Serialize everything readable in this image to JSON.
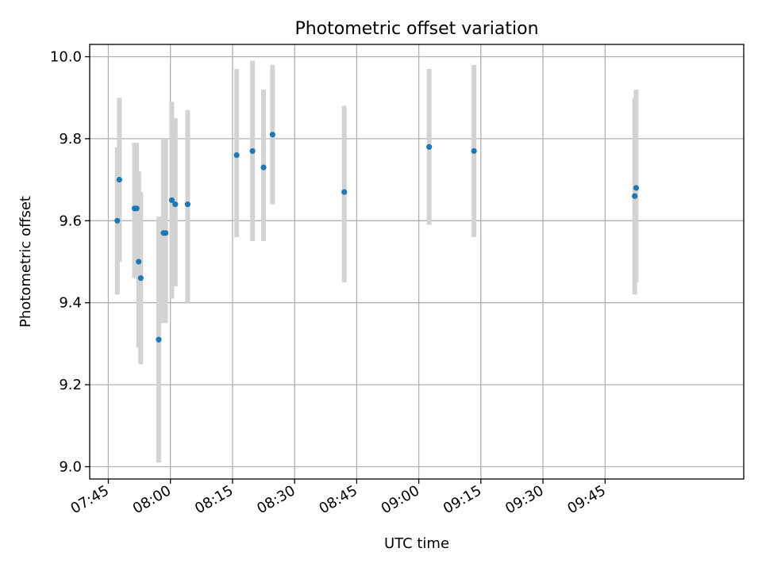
{
  "chart_data": {
    "type": "scatter",
    "title": "Photometric offset variation",
    "xlabel": "UTC time",
    "ylabel": "Photometric offset",
    "x_unit": "time_of_day",
    "xlim": [
      "07:40:30",
      "10:18:30"
    ],
    "ylim": [
      8.97,
      10.03
    ],
    "x_ticks": [
      "07:45",
      "08:00",
      "08:15",
      "08:30",
      "08:45",
      "09:00",
      "09:15",
      "09:30",
      "09:45"
    ],
    "y_ticks": [
      9.0,
      9.2,
      9.4,
      9.6,
      9.8,
      10.0
    ],
    "y_tick_labels": [
      "9.0",
      "9.2",
      "9.4",
      "9.6",
      "9.8",
      "10.0"
    ],
    "grid": true,
    "point_color": "#1f77b4",
    "errorbar_color": "#d3d3d3",
    "points": [
      {
        "x": "07:47:10",
        "y": 9.6,
        "ymin": 9.42,
        "ymax": 9.78
      },
      {
        "x": "07:47:40",
        "y": 9.7,
        "ymin": 9.5,
        "ymax": 9.9
      },
      {
        "x": "07:51:20",
        "y": 9.63,
        "ymin": 9.46,
        "ymax": 9.79
      },
      {
        "x": "07:51:50",
        "y": 9.63,
        "ymin": 9.47,
        "ymax": 9.79
      },
      {
        "x": "07:52:20",
        "y": 9.5,
        "ymin": 9.29,
        "ymax": 9.72
      },
      {
        "x": "07:52:50",
        "y": 9.46,
        "ymin": 9.25,
        "ymax": 9.67
      },
      {
        "x": "07:57:10",
        "y": 9.31,
        "ymin": 9.01,
        "ymax": 9.61
      },
      {
        "x": "07:58:20",
        "y": 9.57,
        "ymin": 9.35,
        "ymax": 9.8
      },
      {
        "x": "07:58:50",
        "y": 9.57,
        "ymin": 9.35,
        "ymax": 9.8
      },
      {
        "x": "08:00:20",
        "y": 9.65,
        "ymin": 9.41,
        "ymax": 9.89
      },
      {
        "x": "08:01:10",
        "y": 9.64,
        "ymin": 9.44,
        "ymax": 9.85
      },
      {
        "x": "08:04:10",
        "y": 9.64,
        "ymin": 9.4,
        "ymax": 9.87
      },
      {
        "x": "08:16:00",
        "y": 9.76,
        "ymin": 9.56,
        "ymax": 9.97
      },
      {
        "x": "08:19:50",
        "y": 9.77,
        "ymin": 9.55,
        "ymax": 9.99
      },
      {
        "x": "08:22:30",
        "y": 9.73,
        "ymin": 9.55,
        "ymax": 9.92
      },
      {
        "x": "08:24:40",
        "y": 9.81,
        "ymin": 9.64,
        "ymax": 9.98
      },
      {
        "x": "08:42:00",
        "y": 9.67,
        "ymin": 9.45,
        "ymax": 9.88
      },
      {
        "x": "09:02:30",
        "y": 9.78,
        "ymin": 9.59,
        "ymax": 9.97
      },
      {
        "x": "09:13:20",
        "y": 9.77,
        "ymin": 9.56,
        "ymax": 9.98
      },
      {
        "x": "09:52:10",
        "y": 9.66,
        "ymin": 9.42,
        "ymax": 9.9
      },
      {
        "x": "09:52:30",
        "y": 9.68,
        "ymin": 9.45,
        "ymax": 9.92
      }
    ]
  }
}
